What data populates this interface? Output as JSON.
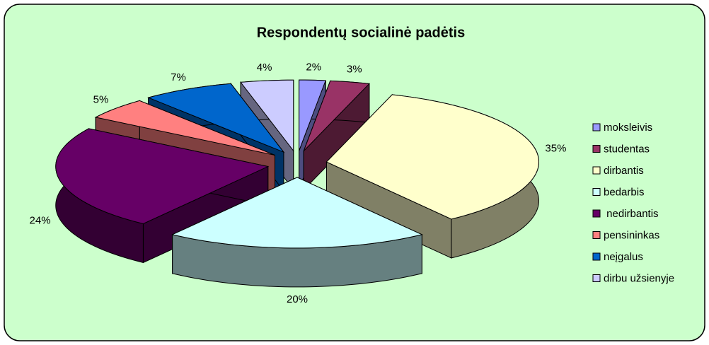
{
  "chart_data": {
    "type": "pie",
    "title": "Respondentų socialinė padėtis",
    "categories": [
      "moksleivis",
      "studentas",
      "dirbantis",
      "bedarbis",
      " nedirbantis",
      "pensininkas",
      "neįgalus",
      "dirbu užsienyje"
    ],
    "values": [
      2,
      3,
      35,
      20,
      24,
      5,
      7,
      4
    ],
    "value_labels": [
      "2%",
      "3%",
      "35%",
      "20%",
      "24%",
      "5%",
      "7%",
      "4%"
    ],
    "colors": [
      "#9999FF",
      "#993366",
      "#FFFFCC",
      "#CCFFFF",
      "#660066",
      "#FF8080",
      "#0066CC",
      "#CCCCFF"
    ],
    "legend": "right"
  }
}
